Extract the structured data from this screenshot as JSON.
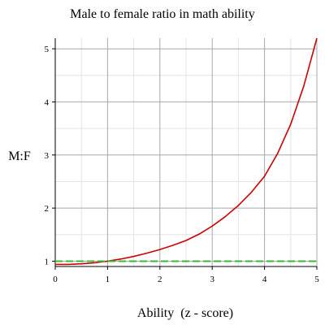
{
  "chart_data": {
    "type": "line",
    "title": "Male to female ratio in math ability",
    "xlabel": "Ability  (z - score)",
    "ylabel": "M:F",
    "xlim": [
      0,
      5
    ],
    "ylim": [
      0.9,
      5.2
    ],
    "xticks": [
      "0",
      "1",
      "2",
      "3",
      "4",
      "5"
    ],
    "yticks": [
      "1",
      "2",
      "3",
      "4",
      "5"
    ],
    "grid": true,
    "series": [
      {
        "color": "#cc0000",
        "style": "solid",
        "x": [
          0,
          0.25,
          0.5,
          0.75,
          1,
          1.25,
          1.5,
          1.75,
          2,
          2.25,
          2.5,
          2.75,
          3,
          3.25,
          3.5,
          3.75,
          4,
          4.25,
          4.5,
          4.75,
          5
        ],
        "y": [
          0.94,
          0.94,
          0.95,
          0.97,
          1.0,
          1.04,
          1.09,
          1.15,
          1.22,
          1.3,
          1.39,
          1.51,
          1.66,
          1.84,
          2.05,
          2.3,
          2.6,
          3.03,
          3.58,
          4.3,
          5.2
        ]
      },
      {
        "color": "#33bb33",
        "style": "dashed",
        "x": [
          0,
          5
        ],
        "y": [
          1.0,
          1.0
        ]
      }
    ]
  }
}
